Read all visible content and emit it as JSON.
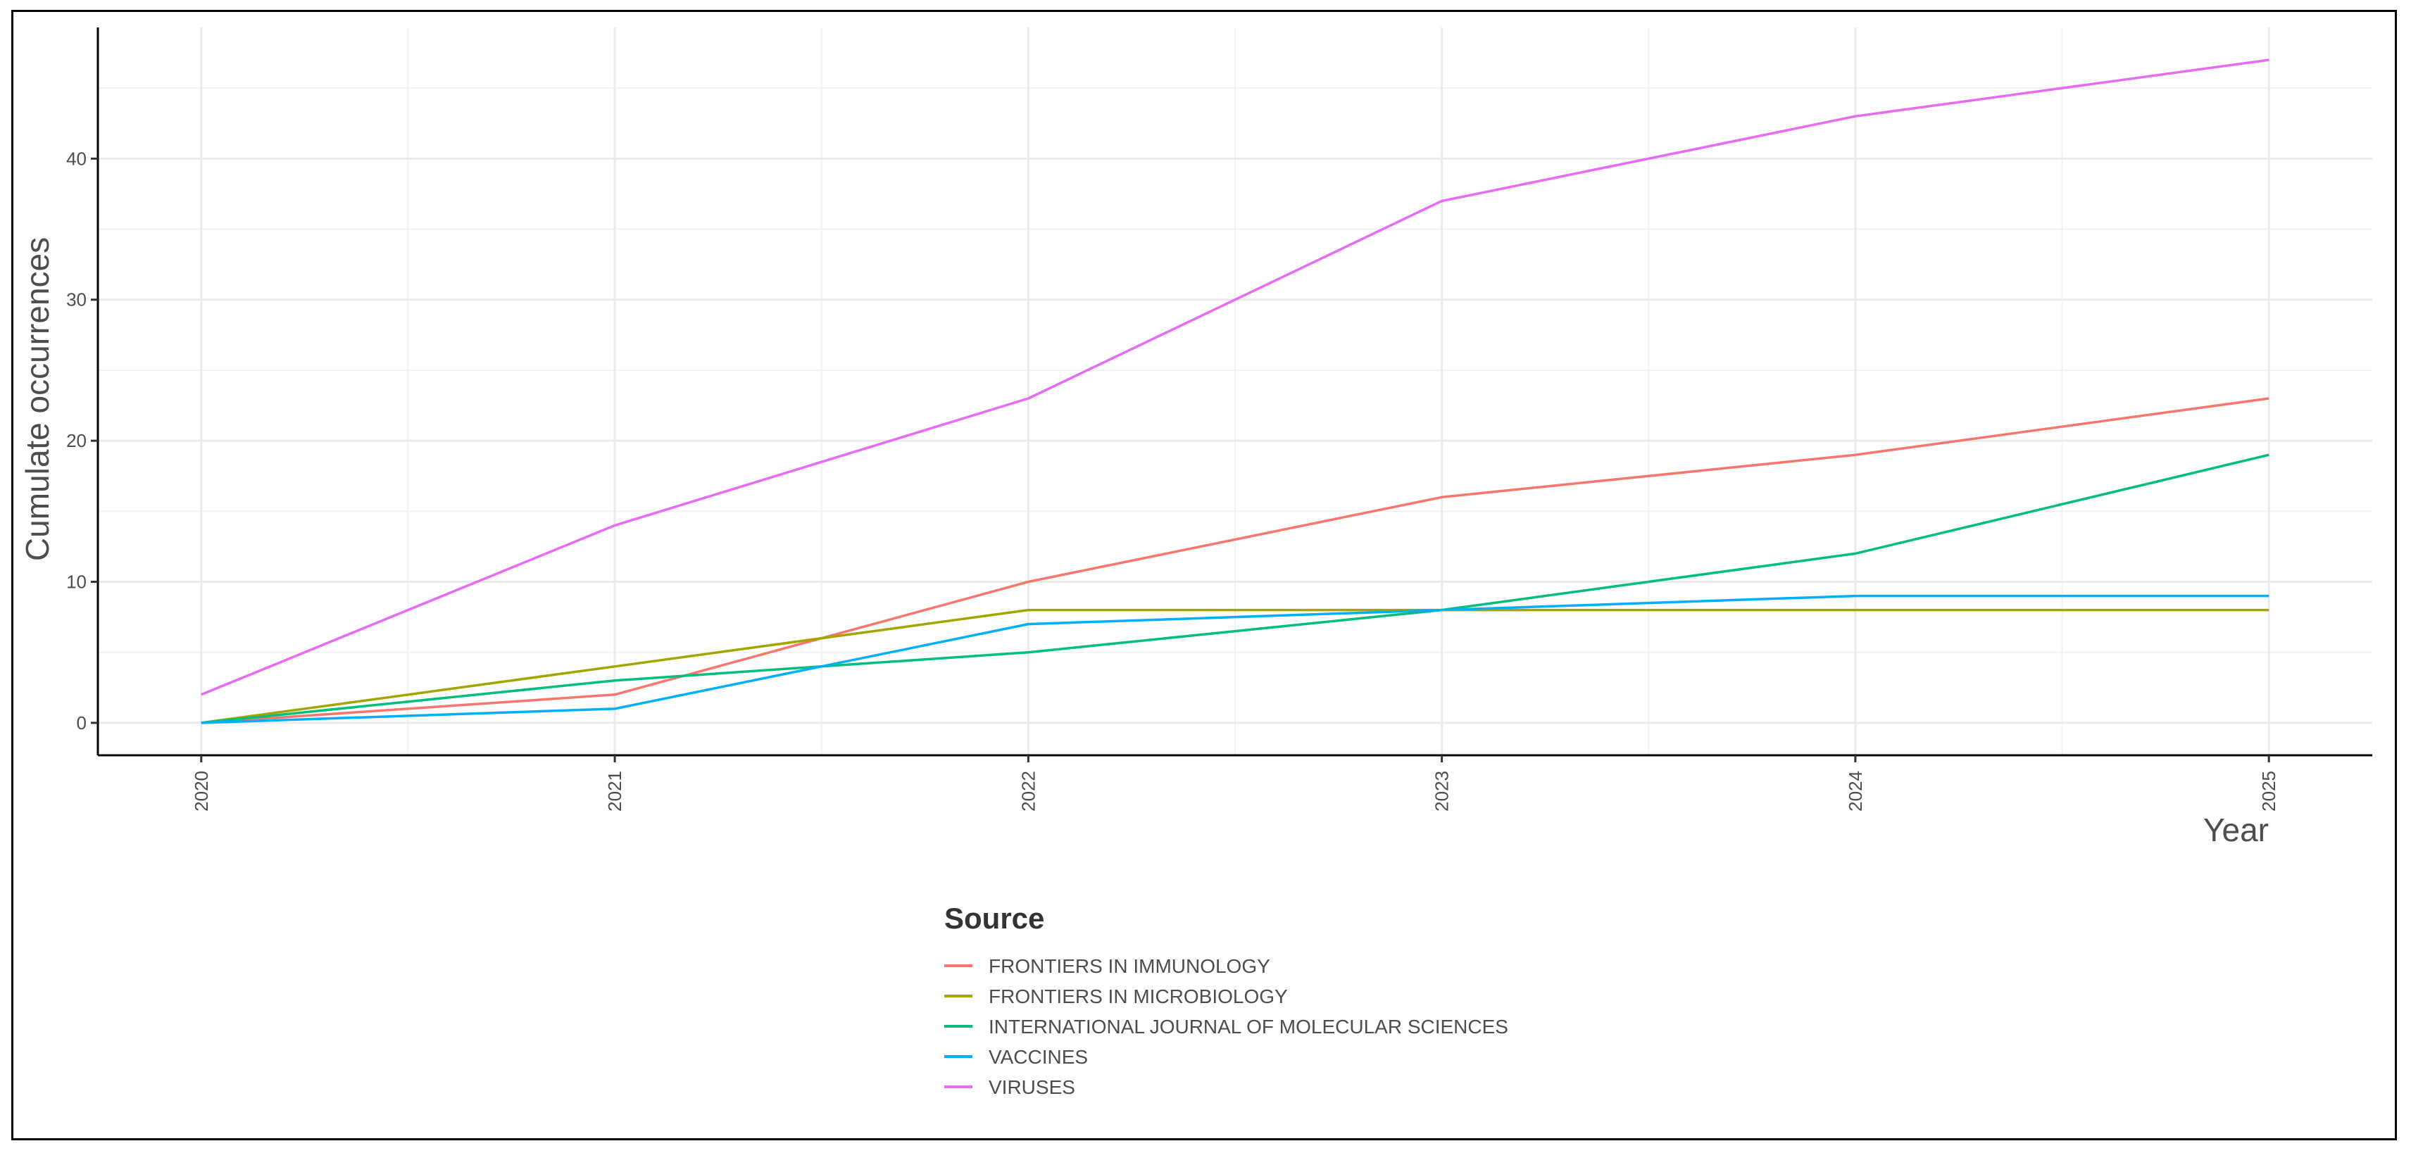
{
  "chart_data": {
    "type": "line",
    "xlabel": "Year",
    "ylabel": "Cumulate occurrences",
    "x": [
      2020,
      2021,
      2022,
      2023,
      2024,
      2025
    ],
    "x_tick_labels": [
      "2020",
      "2021",
      "2022",
      "2023",
      "2024",
      "2025"
    ],
    "yticks": [
      0,
      10,
      20,
      30,
      40
    ],
    "y_tick_labels": [
      "0",
      "10",
      "20",
      "30",
      "40"
    ],
    "ylim": [
      -2.3,
      49.3
    ],
    "xlim": [
      2019.75,
      2025.25
    ],
    "grid": true,
    "legend_position": "bottom",
    "legend_title": "Source",
    "series": [
      {
        "name": "FRONTIERS IN IMMUNOLOGY",
        "color": "#F8766D",
        "values": [
          0,
          2,
          10,
          16,
          19,
          23
        ]
      },
      {
        "name": "FRONTIERS IN MICROBIOLOGY",
        "color": "#A3A500",
        "values": [
          0,
          4,
          8,
          8,
          8,
          8
        ]
      },
      {
        "name": "INTERNATIONAL JOURNAL OF MOLECULAR SCIENCES",
        "color": "#00BF7D",
        "values": [
          0,
          3,
          5,
          8,
          12,
          19
        ]
      },
      {
        "name": "VACCINES",
        "color": "#00B0F6",
        "values": [
          0,
          1,
          7,
          8,
          9,
          9
        ]
      },
      {
        "name": "VIRUSES",
        "color": "#E76BF3",
        "values": [
          2,
          14,
          23,
          37,
          43,
          47
        ]
      }
    ]
  }
}
